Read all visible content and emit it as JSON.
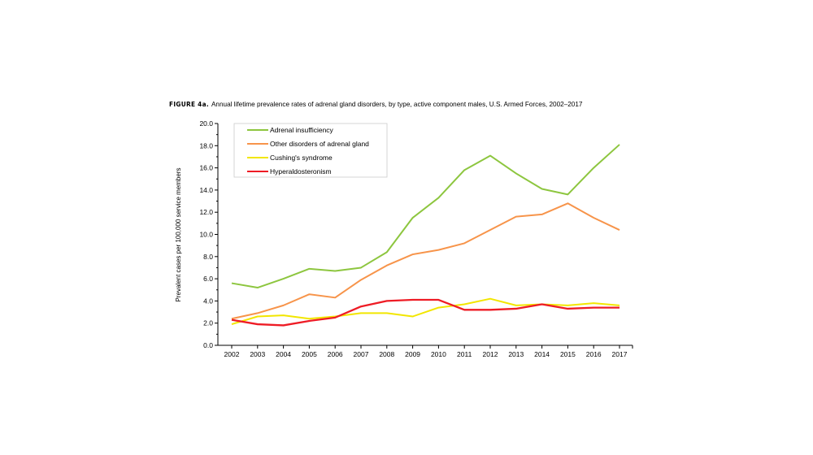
{
  "figure_label": "FIGURE 4a.",
  "chart_data": {
    "type": "line",
    "title": "Annual lifetime prevalence rates of adrenal gland disorders, by type, active component males, U.S. Armed Forces, 2002–2017",
    "xlabel": "",
    "ylabel": "Prevalent cases per 100,000 service members",
    "ylim": [
      0,
      20
    ],
    "yticks": [
      "0.0",
      "2.0",
      "4.0",
      "6.0",
      "8.0",
      "10.0",
      "12.0",
      "14.0",
      "16.0",
      "18.0",
      "20.0"
    ],
    "categories": [
      "2002",
      "2003",
      "2004",
      "2005",
      "2006",
      "2007",
      "2008",
      "2009",
      "2010",
      "2011",
      "2012",
      "2013",
      "2014",
      "2015",
      "2016",
      "2017"
    ],
    "grid": false,
    "legend": "top-left",
    "series": [
      {
        "name": "Adrenal insufficiency",
        "color": "#8dc63f",
        "values": [
          5.6,
          5.2,
          6.0,
          6.9,
          6.7,
          7.0,
          8.4,
          11.5,
          13.3,
          15.8,
          17.1,
          15.5,
          14.1,
          13.6,
          16.0,
          18.1
        ]
      },
      {
        "name": "Other disorders of adrenal gland",
        "color": "#f7944a",
        "values": [
          2.4,
          2.9,
          3.6,
          4.6,
          4.3,
          5.9,
          7.2,
          8.2,
          8.6,
          9.2,
          10.4,
          11.6,
          11.8,
          12.8,
          11.5,
          10.4
        ]
      },
      {
        "name": "Cushing's syndrome",
        "color": "#f2e600",
        "values": [
          1.9,
          2.6,
          2.7,
          2.4,
          2.6,
          2.9,
          2.9,
          2.6,
          3.4,
          3.7,
          4.2,
          3.6,
          3.7,
          3.6,
          3.8,
          3.6
        ]
      },
      {
        "name": "Hyperaldosteronism",
        "color": "#ee1c25",
        "values": [
          2.3,
          1.9,
          1.8,
          2.2,
          2.5,
          3.5,
          4.0,
          4.1,
          4.1,
          3.2,
          3.2,
          3.3,
          3.7,
          3.3,
          3.4,
          3.4
        ]
      }
    ]
  }
}
